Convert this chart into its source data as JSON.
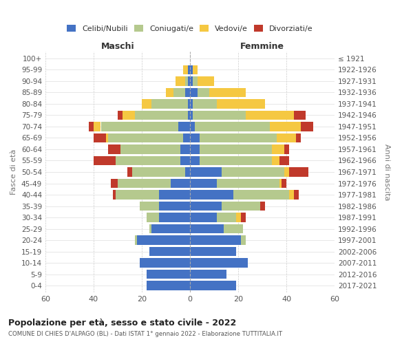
{
  "age_groups": [
    "0-4",
    "5-9",
    "10-14",
    "15-19",
    "20-24",
    "25-29",
    "30-34",
    "35-39",
    "40-44",
    "45-49",
    "50-54",
    "55-59",
    "60-64",
    "65-69",
    "70-74",
    "75-79",
    "80-84",
    "85-89",
    "90-94",
    "95-99",
    "100+"
  ],
  "birth_years": [
    "2017-2021",
    "2012-2016",
    "2007-2011",
    "2002-2006",
    "1997-2001",
    "1992-1996",
    "1987-1991",
    "1982-1986",
    "1977-1981",
    "1972-1976",
    "1967-1971",
    "1962-1966",
    "1957-1961",
    "1952-1956",
    "1947-1951",
    "1942-1946",
    "1937-1941",
    "1932-1936",
    "1927-1931",
    "1922-1926",
    "≤ 1921"
  ],
  "colors": {
    "celibi": "#4472c4",
    "coniugati": "#b5c98e",
    "vedovi": "#f5c842",
    "divorziati": "#c0392b"
  },
  "males": {
    "celibi": [
      18,
      18,
      21,
      17,
      22,
      16,
      13,
      13,
      13,
      8,
      2,
      4,
      4,
      3,
      5,
      1,
      1,
      2,
      1,
      1,
      0
    ],
    "coniugati": [
      0,
      0,
      0,
      0,
      1,
      1,
      5,
      8,
      18,
      22,
      22,
      27,
      25,
      31,
      32,
      22,
      15,
      5,
      1,
      0,
      0
    ],
    "vedovi": [
      0,
      0,
      0,
      0,
      0,
      0,
      0,
      0,
      0,
      0,
      0,
      0,
      0,
      1,
      3,
      5,
      4,
      3,
      4,
      2,
      0
    ],
    "divorziati": [
      0,
      0,
      0,
      0,
      0,
      0,
      0,
      0,
      1,
      3,
      2,
      9,
      5,
      5,
      2,
      2,
      0,
      0,
      0,
      0,
      0
    ]
  },
  "females": {
    "nubili": [
      19,
      15,
      24,
      19,
      21,
      14,
      11,
      13,
      18,
      11,
      13,
      4,
      4,
      4,
      2,
      1,
      1,
      3,
      1,
      1,
      0
    ],
    "coniugate": [
      0,
      0,
      0,
      0,
      2,
      8,
      8,
      16,
      23,
      26,
      26,
      30,
      30,
      32,
      31,
      22,
      10,
      5,
      2,
      0,
      0
    ],
    "vedove": [
      0,
      0,
      0,
      0,
      0,
      0,
      2,
      0,
      2,
      1,
      2,
      3,
      5,
      8,
      13,
      20,
      20,
      15,
      7,
      2,
      0
    ],
    "divorziate": [
      0,
      0,
      0,
      0,
      0,
      0,
      2,
      2,
      2,
      2,
      8,
      4,
      2,
      2,
      5,
      5,
      0,
      0,
      0,
      0,
      0
    ]
  },
  "xlim": 60,
  "title": "Popolazione per età, sesso e stato civile - 2022",
  "subtitle": "COMUNE DI CHIES D'ALPAGO (BL) - Dati ISTAT 1° gennaio 2022 - Elaborazione TUTTITALIA.IT",
  "ylabel_left": "Fasce di età",
  "ylabel_right": "Anni di nascita",
  "xlabel_left": "Maschi",
  "xlabel_right": "Femmine"
}
